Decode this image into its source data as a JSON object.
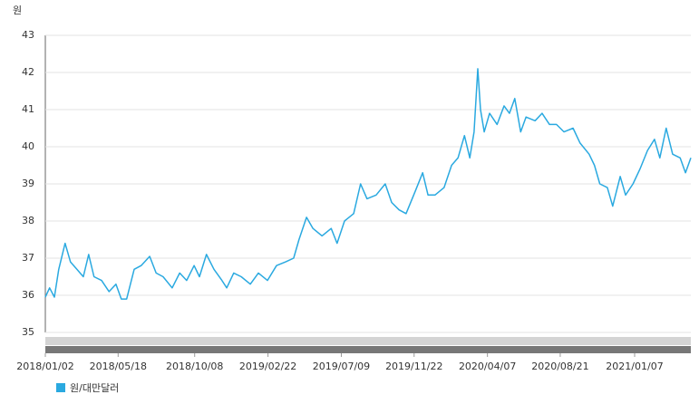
{
  "chart_data": {
    "type": "line",
    "y_label": "원",
    "x": [
      "2018/01/02",
      "2018/01/10",
      "2018/01/19",
      "2018/01/27",
      "2018/02/08",
      "2018/02/18",
      "2018/03/02",
      "2018/03/14",
      "2018/03/24",
      "2018/04/03",
      "2018/04/17",
      "2018/05/01",
      "2018/05/14",
      "2018/05/24",
      "2018/06/03",
      "2018/06/17",
      "2018/06/30",
      "2018/07/16",
      "2018/07/28",
      "2018/08/10",
      "2018/08/27",
      "2018/09/10",
      "2018/09/23",
      "2018/10/07",
      "2018/10/17",
      "2018/10/30",
      "2018/11/13",
      "2018/11/28",
      "2018/12/07",
      "2018/12/20",
      "2019/01/03",
      "2019/01/20",
      "2019/02/04",
      "2019/02/21",
      "2019/03/10",
      "2019/03/27",
      "2019/04/11",
      "2019/04/21",
      "2019/05/05",
      "2019/05/17",
      "2019/06/03",
      "2019/06/20",
      "2019/07/01",
      "2019/07/15",
      "2019/08/01",
      "2019/08/14",
      "2019/08/26",
      "2019/09/12",
      "2019/09/29",
      "2019/10/11",
      "2019/10/25",
      "2019/11/07",
      "2019/11/24",
      "2019/12/08",
      "2019/12/18",
      "2019/12/31",
      "2020/01/17",
      "2020/01/31",
      "2020/02/12",
      "2020/02/24",
      "2020/03/05",
      "2020/03/13",
      "2020/03/20",
      "2020/03/25",
      "2020/04/01",
      "2020/04/11",
      "2020/04/25",
      "2020/05/08",
      "2020/05/18",
      "2020/05/28",
      "2020/06/08",
      "2020/06/18",
      "2020/07/05",
      "2020/07/18",
      "2020/08/01",
      "2020/08/14",
      "2020/08/28",
      "2020/09/14",
      "2020/09/27",
      "2020/10/14",
      "2020/10/24",
      "2020/11/03",
      "2020/11/17",
      "2020/11/27",
      "2020/12/11",
      "2020/12/21",
      "2021/01/04",
      "2021/01/17",
      "2021/01/31",
      "2021/02/13",
      "2021/02/23",
      "2021/03/07",
      "2021/03/19",
      "2021/04/02",
      "2021/04/12",
      "2021/04/22"
    ],
    "series": [
      {
        "name": "원/대만달러",
        "color": "#2aa9e0",
        "values": [
          35.95,
          36.2,
          35.95,
          36.7,
          37.4,
          36.9,
          36.7,
          36.5,
          37.1,
          36.5,
          36.4,
          36.1,
          36.3,
          35.9,
          35.9,
          36.7,
          36.8,
          37.05,
          36.6,
          36.5,
          36.2,
          36.6,
          36.4,
          36.8,
          36.5,
          37.1,
          36.7,
          36.4,
          36.2,
          36.6,
          36.5,
          36.3,
          36.6,
          36.4,
          36.8,
          36.9,
          37.0,
          37.5,
          38.1,
          37.8,
          37.6,
          37.8,
          37.4,
          38.0,
          38.2,
          39.0,
          38.6,
          38.7,
          39.0,
          38.5,
          38.3,
          38.2,
          38.8,
          39.3,
          38.7,
          38.7,
          38.9,
          39.5,
          39.7,
          40.3,
          39.7,
          40.4,
          42.1,
          41.0,
          40.4,
          40.9,
          40.6,
          41.1,
          40.9,
          41.3,
          40.4,
          40.8,
          40.7,
          40.9,
          40.6,
          40.6,
          40.4,
          40.5,
          40.1,
          39.8,
          39.5,
          39.0,
          38.9,
          38.4,
          39.2,
          38.7,
          39.0,
          39.4,
          39.9,
          40.2,
          39.7,
          40.5,
          39.8,
          39.7,
          39.3,
          39.7
        ]
      }
    ],
    "xlim": [
      "2018/01/02",
      "2021/04/22"
    ],
    "xticks": [
      "2018/01/02",
      "2018/05/18",
      "2018/10/08",
      "2019/02/22",
      "2019/07/09",
      "2019/11/22",
      "2020/04/07",
      "2020/08/21",
      "2021/01/07"
    ],
    "ylim": [
      35,
      43
    ],
    "yticks": [
      35,
      36,
      37,
      38,
      39,
      40,
      41,
      42,
      43
    ],
    "grid": true
  }
}
